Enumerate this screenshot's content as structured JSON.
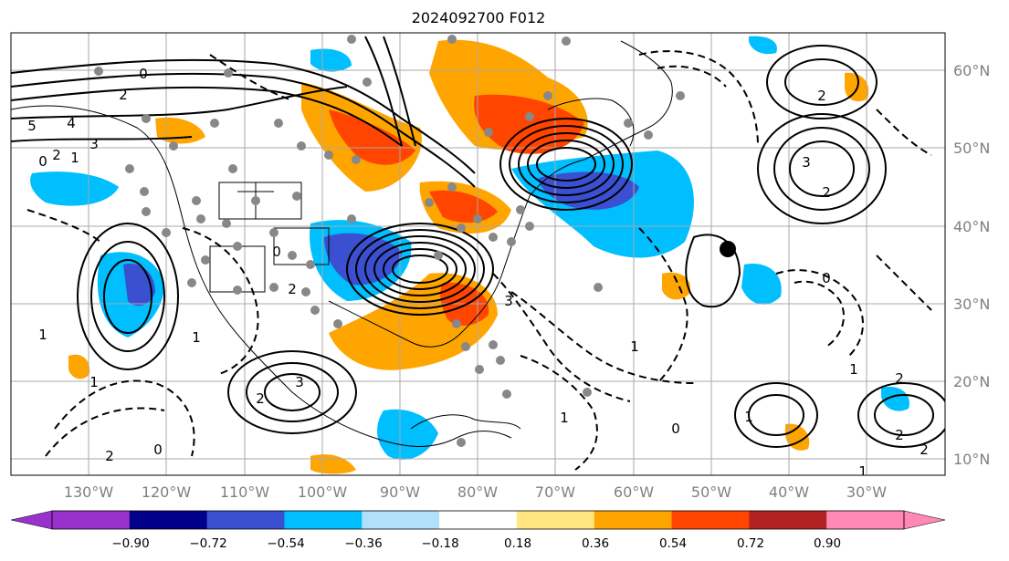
{
  "title": "2024092700 F012",
  "longitude_labels": [
    "130°W",
    "120°W",
    "110°W",
    "100°W",
    "90°W",
    "80°W",
    "70°W",
    "60°W",
    "50°W",
    "40°W",
    "30°W"
  ],
  "latitude_labels": [
    "60°N",
    "50°N",
    "40°N",
    "30°N",
    "20°N",
    "10°N"
  ],
  "colorbar": {
    "colors": [
      "#8a2be2",
      "#00008b",
      "#3a50d0",
      "#00bfff",
      "#b0e0fa",
      "#ffffff",
      "#ffff88",
      "#ffa500",
      "#ff4500",
      "#b22222",
      "#ff88aa"
    ],
    "bin_colors": [
      "#00008b",
      "#3a50d0",
      "#00bfff",
      "#b0e0fa",
      "#ffffff",
      "#ffe680",
      "#ffa500",
      "#ff4500",
      "#b22222"
    ],
    "under_color": "#9932cc",
    "over_color": "#ff88b4",
    "tick_labels": [
      "−0.90",
      "−0.72",
      "−0.54",
      "−0.36",
      "−0.18",
      "0.18",
      "0.36",
      "0.54",
      "0.72",
      "0.90"
    ]
  },
  "contour_labels": [
    "0",
    "2",
    "5",
    "4",
    "3",
    "2",
    "1",
    "1",
    "0",
    "2",
    "1",
    "0",
    "1",
    "2",
    "3",
    "3",
    "2",
    "0",
    "2",
    "1",
    "2",
    "2",
    "1",
    "0",
    "1",
    "2",
    "1",
    "1",
    "3",
    "2",
    "0"
  ],
  "hurricane_marker": "black dot"
}
